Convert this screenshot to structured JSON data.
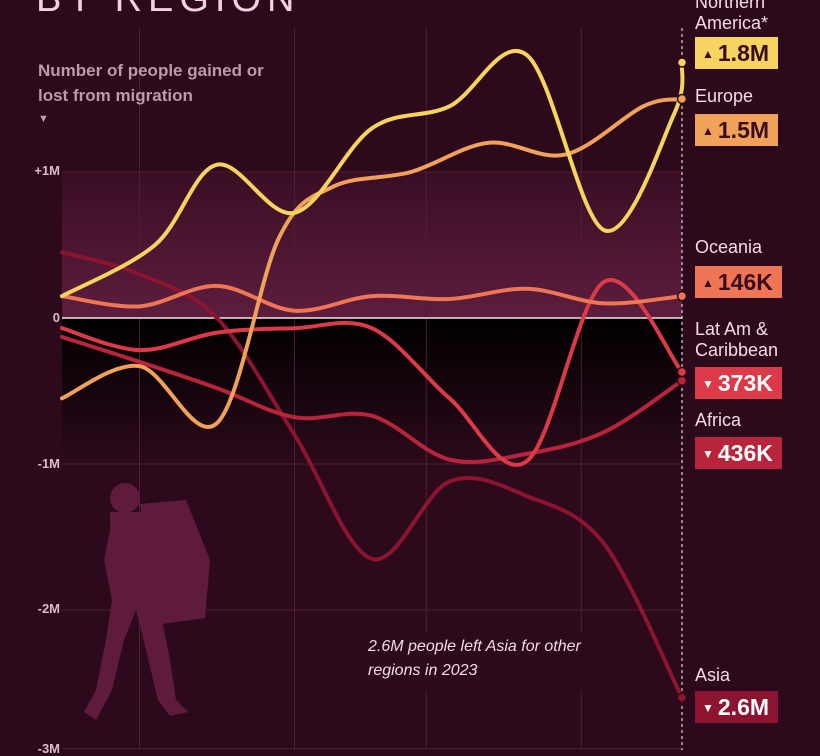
{
  "header": {
    "title": "BY REGION",
    "subtitle": "Number of people gained or lost from migration",
    "subtitle_caret": "▼"
  },
  "colors": {
    "background": "#2c0a1b",
    "northern_america": "#f7d35f",
    "europe": "#f0a15a",
    "oceania": "#ee7555",
    "latam": "#dc3a48",
    "africa": "#b8243c",
    "asia": "#8c1431"
  },
  "annotation": {
    "text": "2.6M people left Asia for other regions in 2023"
  },
  "chart_data": {
    "type": "line",
    "ylim": [
      -2.9,
      1.95
    ],
    "xlim": [
      2015,
      2023
    ],
    "y_ticks": [
      {
        "value": 1,
        "label": "+1M"
      },
      {
        "value": 0,
        "label": "0"
      },
      {
        "value": -1,
        "label": "-1M"
      },
      {
        "value": -2,
        "label": "-2M"
      },
      {
        "value": -2.95,
        "label": "-3M"
      }
    ],
    "x_gridlines": [
      2016,
      2018,
      2019.7,
      2021.7
    ],
    "series": [
      {
        "name": "Northern America*",
        "color": "#f7d35f",
        "badge": "1.8M",
        "direction": "up",
        "x": [
          2015,
          2016.2,
          2017,
          2018,
          2019,
          2020,
          2021,
          2022,
          2022.9,
          2023
        ],
        "y": [
          0.15,
          0.5,
          1.05,
          0.72,
          1.3,
          1.45,
          1.8,
          0.6,
          1.4,
          1.75
        ]
      },
      {
        "name": "Europe",
        "color": "#f0a15a",
        "badge": "1.5M",
        "direction": "up",
        "x": [
          2015,
          2016,
          2017,
          2017.8,
          2018.5,
          2019.5,
          2020.5,
          2021.5,
          2022.5,
          2023
        ],
        "y": [
          -0.55,
          -0.33,
          -0.72,
          0.55,
          0.9,
          1.0,
          1.2,
          1.12,
          1.45,
          1.5
        ]
      },
      {
        "name": "Oceania",
        "color": "#ee7555",
        "badge": "146K",
        "direction": "up",
        "x": [
          2015,
          2016,
          2017,
          2018,
          2019,
          2020,
          2021,
          2022,
          2023
        ],
        "y": [
          0.15,
          0.08,
          0.22,
          0.05,
          0.15,
          0.13,
          0.2,
          0.1,
          0.15
        ]
      },
      {
        "name": "Lat Am & Caribbean",
        "color": "#dc3a48",
        "badge": "373K",
        "direction": "down",
        "x": [
          2015,
          2016,
          2017,
          2018,
          2019,
          2020,
          2021,
          2022,
          2023
        ],
        "y": [
          -0.07,
          -0.22,
          -0.1,
          -0.07,
          -0.07,
          -0.55,
          -0.98,
          0.25,
          -0.37
        ]
      },
      {
        "name": "Africa",
        "color": "#b8243c",
        "badge": "436K",
        "direction": "down",
        "x": [
          2015,
          2016,
          2017,
          2018,
          2019,
          2020,
          2021,
          2022,
          2023
        ],
        "y": [
          -0.13,
          -0.3,
          -0.48,
          -0.68,
          -0.67,
          -0.97,
          -0.93,
          -0.78,
          -0.43
        ]
      },
      {
        "name": "Asia",
        "color": "#8c1431",
        "badge": "2.6M",
        "direction": "down",
        "x": [
          2015,
          2016,
          2017,
          2018,
          2019,
          2020,
          2021,
          2022,
          2023
        ],
        "y": [
          0.45,
          0.3,
          0.0,
          -0.8,
          -1.65,
          -1.12,
          -1.22,
          -1.55,
          -2.6
        ]
      }
    ]
  }
}
